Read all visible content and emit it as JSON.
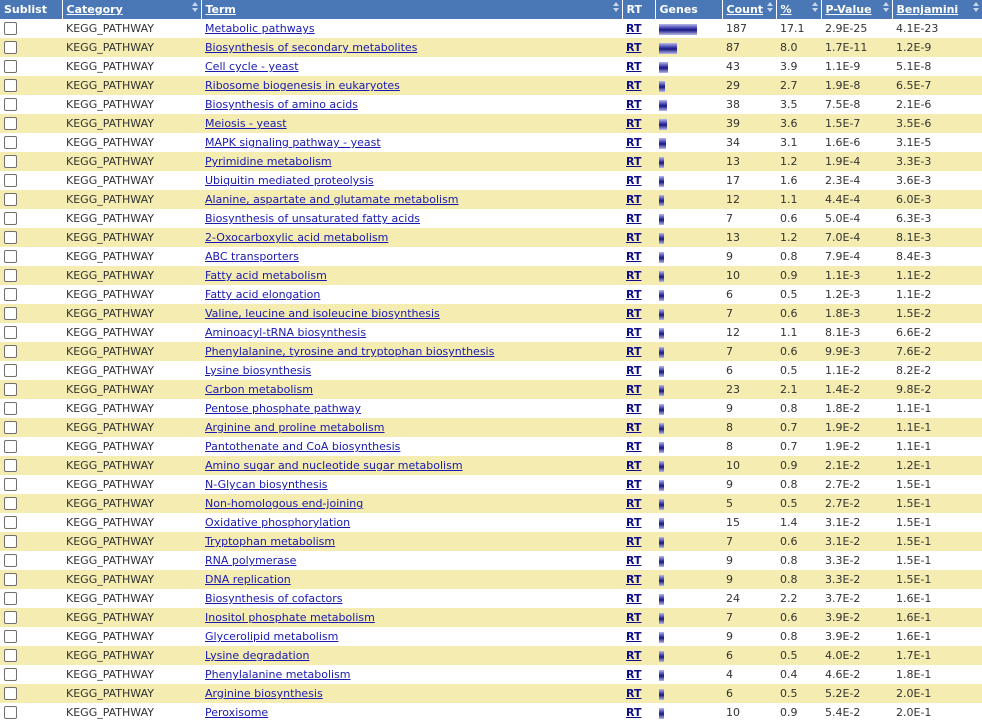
{
  "headers": {
    "sublist": "Sublist",
    "category": "Category",
    "term": "Term",
    "rt": "RT",
    "genes": "Genes",
    "count": "Count",
    "percent": "%",
    "pvalue": "P-Value",
    "benjamini": "Benjamini"
  },
  "rows": [
    {
      "category": "KEGG_PATHWAY",
      "term": "Metabolic pathways",
      "rt": "RT",
      "count": "187",
      "percent": "17.1",
      "pvalue": "2.9E-25",
      "benjamini": "4.1E-23"
    },
    {
      "category": "KEGG_PATHWAY",
      "term": "Biosynthesis of secondary metabolites",
      "rt": "RT",
      "count": "87",
      "percent": "8.0",
      "pvalue": "1.7E-11",
      "benjamini": "1.2E-9"
    },
    {
      "category": "KEGG_PATHWAY",
      "term": "Cell cycle - yeast",
      "rt": "RT",
      "count": "43",
      "percent": "3.9",
      "pvalue": "1.1E-9",
      "benjamini": "5.1E-8"
    },
    {
      "category": "KEGG_PATHWAY",
      "term": "Ribosome biogenesis in eukaryotes",
      "rt": "RT",
      "count": "29",
      "percent": "2.7",
      "pvalue": "1.9E-8",
      "benjamini": "6.5E-7"
    },
    {
      "category": "KEGG_PATHWAY",
      "term": "Biosynthesis of amino acids",
      "rt": "RT",
      "count": "38",
      "percent": "3.5",
      "pvalue": "7.5E-8",
      "benjamini": "2.1E-6"
    },
    {
      "category": "KEGG_PATHWAY",
      "term": "Meiosis - yeast",
      "rt": "RT",
      "count": "39",
      "percent": "3.6",
      "pvalue": "1.5E-7",
      "benjamini": "3.5E-6"
    },
    {
      "category": "KEGG_PATHWAY",
      "term": "MAPK signaling pathway - yeast",
      "rt": "RT",
      "count": "34",
      "percent": "3.1",
      "pvalue": "1.6E-6",
      "benjamini": "3.1E-5"
    },
    {
      "category": "KEGG_PATHWAY",
      "term": "Pyrimidine metabolism",
      "rt": "RT",
      "count": "13",
      "percent": "1.2",
      "pvalue": "1.9E-4",
      "benjamini": "3.3E-3"
    },
    {
      "category": "KEGG_PATHWAY",
      "term": "Ubiquitin mediated proteolysis",
      "rt": "RT",
      "count": "17",
      "percent": "1.6",
      "pvalue": "2.3E-4",
      "benjamini": "3.6E-3"
    },
    {
      "category": "KEGG_PATHWAY",
      "term": "Alanine, aspartate and glutamate metabolism",
      "rt": "RT",
      "count": "12",
      "percent": "1.1",
      "pvalue": "4.4E-4",
      "benjamini": "6.0E-3"
    },
    {
      "category": "KEGG_PATHWAY",
      "term": "Biosynthesis of unsaturated fatty acids",
      "rt": "RT",
      "count": "7",
      "percent": "0.6",
      "pvalue": "5.0E-4",
      "benjamini": "6.3E-3"
    },
    {
      "category": "KEGG_PATHWAY",
      "term": "2-Oxocarboxylic acid metabolism",
      "rt": "RT",
      "count": "13",
      "percent": "1.2",
      "pvalue": "7.0E-4",
      "benjamini": "8.1E-3"
    },
    {
      "category": "KEGG_PATHWAY",
      "term": "ABC transporters",
      "rt": "RT",
      "count": "9",
      "percent": "0.8",
      "pvalue": "7.9E-4",
      "benjamini": "8.4E-3"
    },
    {
      "category": "KEGG_PATHWAY",
      "term": "Fatty acid metabolism",
      "rt": "RT",
      "count": "10",
      "percent": "0.9",
      "pvalue": "1.1E-3",
      "benjamini": "1.1E-2"
    },
    {
      "category": "KEGG_PATHWAY",
      "term": "Fatty acid elongation",
      "rt": "RT",
      "count": "6",
      "percent": "0.5",
      "pvalue": "1.2E-3",
      "benjamini": "1.1E-2"
    },
    {
      "category": "KEGG_PATHWAY",
      "term": "Valine, leucine and isoleucine biosynthesis",
      "rt": "RT",
      "count": "7",
      "percent": "0.6",
      "pvalue": "1.8E-3",
      "benjamini": "1.5E-2"
    },
    {
      "category": "KEGG_PATHWAY",
      "term": "Aminoacyl-tRNA biosynthesis",
      "rt": "RT",
      "count": "12",
      "percent": "1.1",
      "pvalue": "8.1E-3",
      "benjamini": "6.6E-2"
    },
    {
      "category": "KEGG_PATHWAY",
      "term": "Phenylalanine, tyrosine and tryptophan biosynthesis",
      "rt": "RT",
      "count": "7",
      "percent": "0.6",
      "pvalue": "9.9E-3",
      "benjamini": "7.6E-2"
    },
    {
      "category": "KEGG_PATHWAY",
      "term": "Lysine biosynthesis",
      "rt": "RT",
      "count": "6",
      "percent": "0.5",
      "pvalue": "1.1E-2",
      "benjamini": "8.2E-2"
    },
    {
      "category": "KEGG_PATHWAY",
      "term": "Carbon metabolism",
      "rt": "RT",
      "count": "23",
      "percent": "2.1",
      "pvalue": "1.4E-2",
      "benjamini": "9.8E-2"
    },
    {
      "category": "KEGG_PATHWAY",
      "term": "Pentose phosphate pathway",
      "rt": "RT",
      "count": "9",
      "percent": "0.8",
      "pvalue": "1.8E-2",
      "benjamini": "1.1E-1"
    },
    {
      "category": "KEGG_PATHWAY",
      "term": "Arginine and proline metabolism",
      "rt": "RT",
      "count": "8",
      "percent": "0.7",
      "pvalue": "1.9E-2",
      "benjamini": "1.1E-1"
    },
    {
      "category": "KEGG_PATHWAY",
      "term": "Pantothenate and CoA biosynthesis",
      "rt": "RT",
      "count": "8",
      "percent": "0.7",
      "pvalue": "1.9E-2",
      "benjamini": "1.1E-1"
    },
    {
      "category": "KEGG_PATHWAY",
      "term": "Amino sugar and nucleotide sugar metabolism",
      "rt": "RT",
      "count": "10",
      "percent": "0.9",
      "pvalue": "2.1E-2",
      "benjamini": "1.2E-1"
    },
    {
      "category": "KEGG_PATHWAY",
      "term": "N-Glycan biosynthesis",
      "rt": "RT",
      "count": "9",
      "percent": "0.8",
      "pvalue": "2.7E-2",
      "benjamini": "1.5E-1"
    },
    {
      "category": "KEGG_PATHWAY",
      "term": "Non-homologous end-joining",
      "rt": "RT",
      "count": "5",
      "percent": "0.5",
      "pvalue": "2.7E-2",
      "benjamini": "1.5E-1"
    },
    {
      "category": "KEGG_PATHWAY",
      "term": "Oxidative phosphorylation",
      "rt": "RT",
      "count": "15",
      "percent": "1.4",
      "pvalue": "3.1E-2",
      "benjamini": "1.5E-1"
    },
    {
      "category": "KEGG_PATHWAY",
      "term": "Tryptophan metabolism",
      "rt": "RT",
      "count": "7",
      "percent": "0.6",
      "pvalue": "3.1E-2",
      "benjamini": "1.5E-1"
    },
    {
      "category": "KEGG_PATHWAY",
      "term": "RNA polymerase",
      "rt": "RT",
      "count": "9",
      "percent": "0.8",
      "pvalue": "3.3E-2",
      "benjamini": "1.5E-1"
    },
    {
      "category": "KEGG_PATHWAY",
      "term": "DNA replication",
      "rt": "RT",
      "count": "9",
      "percent": "0.8",
      "pvalue": "3.3E-2",
      "benjamini": "1.5E-1"
    },
    {
      "category": "KEGG_PATHWAY",
      "term": "Biosynthesis of cofactors",
      "rt": "RT",
      "count": "24",
      "percent": "2.2",
      "pvalue": "3.7E-2",
      "benjamini": "1.6E-1"
    },
    {
      "category": "KEGG_PATHWAY",
      "term": "Inositol phosphate metabolism",
      "rt": "RT",
      "count": "7",
      "percent": "0.6",
      "pvalue": "3.9E-2",
      "benjamini": "1.6E-1"
    },
    {
      "category": "KEGG_PATHWAY",
      "term": "Glycerolipid metabolism",
      "rt": "RT",
      "count": "9",
      "percent": "0.8",
      "pvalue": "3.9E-2",
      "benjamini": "1.6E-1"
    },
    {
      "category": "KEGG_PATHWAY",
      "term": "Lysine degradation",
      "rt": "RT",
      "count": "6",
      "percent": "0.5",
      "pvalue": "4.0E-2",
      "benjamini": "1.7E-1"
    },
    {
      "category": "KEGG_PATHWAY",
      "term": "Phenylalanine metabolism",
      "rt": "RT",
      "count": "4",
      "percent": "0.4",
      "pvalue": "4.6E-2",
      "benjamini": "1.8E-1"
    },
    {
      "category": "KEGG_PATHWAY",
      "term": "Arginine biosynthesis",
      "rt": "RT",
      "count": "6",
      "percent": "0.5",
      "pvalue": "5.2E-2",
      "benjamini": "2.0E-1"
    },
    {
      "category": "KEGG_PATHWAY",
      "term": "Peroxisome",
      "rt": "RT",
      "count": "10",
      "percent": "0.9",
      "pvalue": "5.4E-2",
      "benjamini": "2.0E-1"
    }
  ],
  "colors": {
    "header_bg": "#4a78b6",
    "alt_row_bg": "#f4ecb0",
    "link": "#1a1ab0",
    "gene_bar": "#2b2ba0"
  },
  "icons": {
    "sort": "sort-arrows-icon",
    "checkbox": "checkbox"
  }
}
